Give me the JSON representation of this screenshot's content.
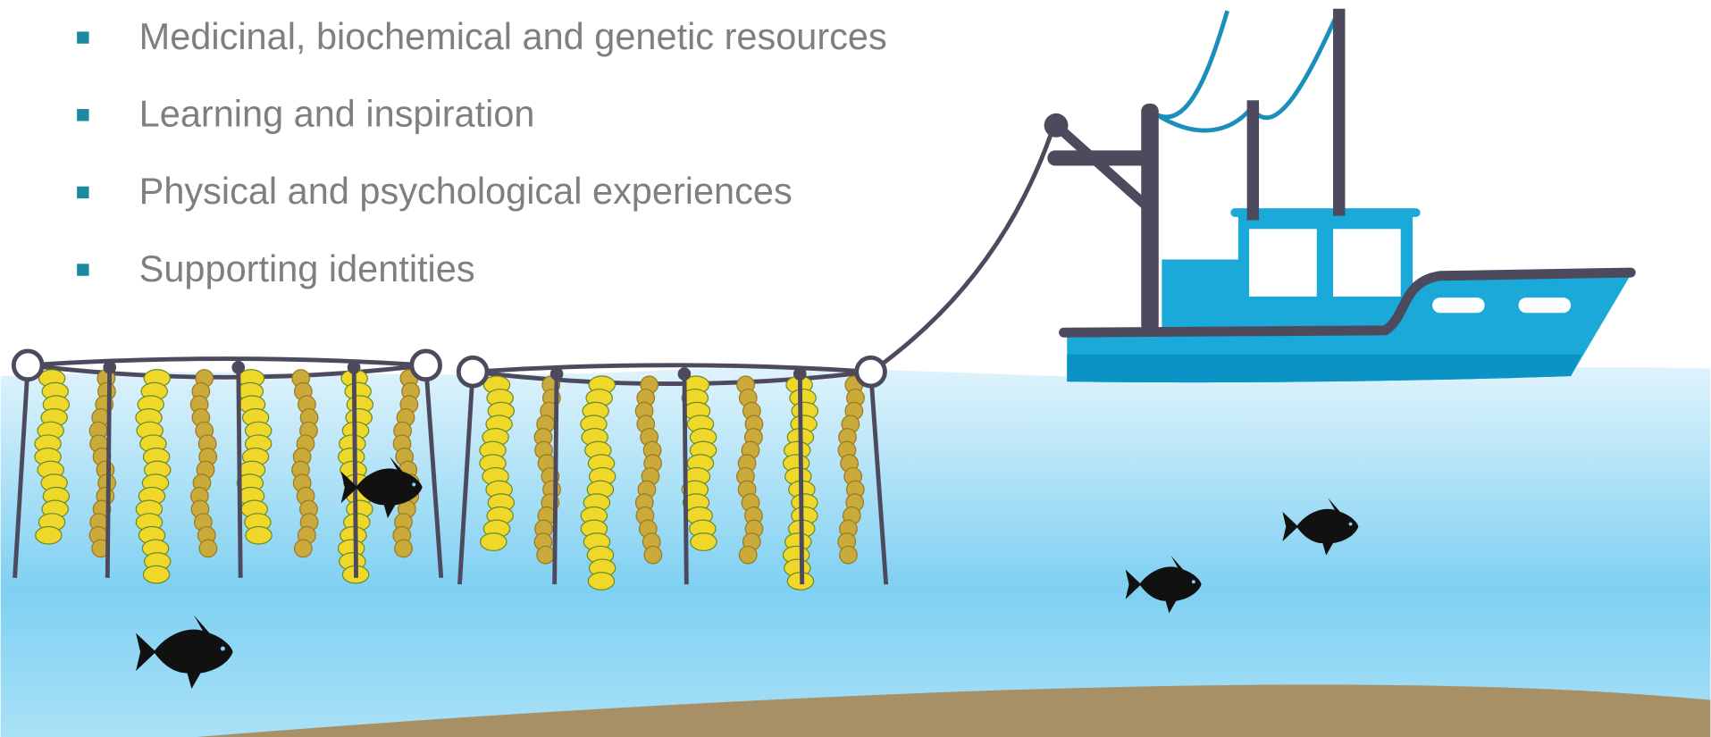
{
  "bullets": [
    "Medicinal, biochemical and genetic resources",
    "Learning and inspiration",
    "Physical and psychological experiences",
    "Supporting identities"
  ]
}
